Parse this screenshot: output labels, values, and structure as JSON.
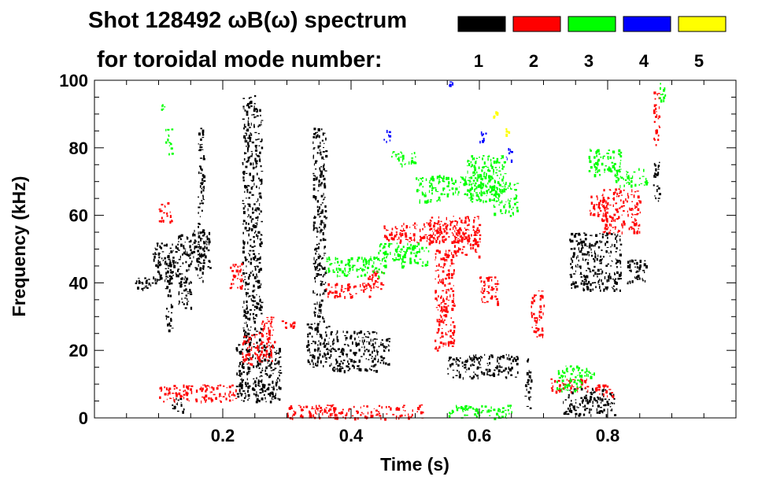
{
  "chart_data": {
    "type": "scatter",
    "title_line1": "Shot 128492 ωB(ω) spectrum",
    "title_line2": "for toroidal mode number:",
    "xlabel": "Time (s)",
    "ylabel": "Frequency (kHz)",
    "xlim": [
      0.0,
      1.0
    ],
    "ylim": [
      0,
      100
    ],
    "x_ticks": [
      0.2,
      0.4,
      0.6,
      0.8
    ],
    "x_tick_labels": [
      "0.2",
      "0.4",
      "0.6",
      "0.8"
    ],
    "y_ticks": [
      0,
      20,
      40,
      60,
      80,
      100
    ],
    "y_tick_labels": [
      "0",
      "20",
      "40",
      "60",
      "80",
      "100"
    ],
    "grid": false,
    "legend_placement": "top-right",
    "series": [
      {
        "name": "1",
        "color": "#000000",
        "blobs": [
          {
            "x": [
              0.06,
              0.09
            ],
            "y": [
              38,
              42
            ]
          },
          {
            "x": [
              0.09,
              0.13
            ],
            "y": [
              40,
              52
            ]
          },
          {
            "x": [
              0.11,
              0.12
            ],
            "y": [
              26,
              46
            ]
          },
          {
            "x": [
              0.13,
              0.15
            ],
            "y": [
              32,
              55
            ]
          },
          {
            "x": [
              0.15,
              0.18
            ],
            "y": [
              44,
              56
            ]
          },
          {
            "x": [
              0.16,
              0.17
            ],
            "y": [
              40,
              86
            ]
          },
          {
            "x": [
              0.12,
              0.14
            ],
            "y": [
              2,
              6
            ]
          },
          {
            "x": [
              0.22,
              0.29
            ],
            "y": [
              5,
              22
            ]
          },
          {
            "x": [
              0.23,
              0.25
            ],
            "y": [
              22,
              96
            ]
          },
          {
            "x": [
              0.25,
              0.26
            ],
            "y": [
              20,
              92
            ]
          },
          {
            "x": [
              0.33,
              0.37
            ],
            "y": [
              15,
              28
            ]
          },
          {
            "x": [
              0.34,
              0.36
            ],
            "y": [
              28,
              86
            ]
          },
          {
            "x": [
              0.37,
              0.44
            ],
            "y": [
              14,
              26
            ]
          },
          {
            "x": [
              0.44,
              0.46
            ],
            "y": [
              16,
              24
            ]
          },
          {
            "x": [
              0.55,
              0.66
            ],
            "y": [
              12,
              19
            ]
          },
          {
            "x": [
              0.67,
              0.68
            ],
            "y": [
              3,
              18
            ]
          },
          {
            "x": [
              0.73,
              0.81
            ],
            "y": [
              1,
              9
            ]
          },
          {
            "x": [
              0.74,
              0.82
            ],
            "y": [
              38,
              55
            ]
          },
          {
            "x": [
              0.83,
              0.86
            ],
            "y": [
              40,
              47
            ]
          },
          {
            "x": [
              0.87,
              0.88
            ],
            "y": [
              64,
              76
            ]
          }
        ]
      },
      {
        "name": "2",
        "color": "#ff0000",
        "blobs": [
          {
            "x": [
              0.1,
              0.22
            ],
            "y": [
              5,
              10
            ]
          },
          {
            "x": [
              0.1,
              0.12
            ],
            "y": [
              58,
              64
            ]
          },
          {
            "x": [
              0.21,
              0.23
            ],
            "y": [
              38,
              46
            ]
          },
          {
            "x": [
              0.23,
              0.28
            ],
            "y": [
              16,
              26
            ]
          },
          {
            "x": [
              0.26,
              0.28
            ],
            "y": [
              22,
              30
            ]
          },
          {
            "x": [
              0.29,
              0.32
            ],
            "y": [
              27,
              29
            ]
          },
          {
            "x": [
              0.3,
              0.51
            ],
            "y": [
              0,
              4
            ]
          },
          {
            "x": [
              0.36,
              0.43
            ],
            "y": [
              36,
              40
            ]
          },
          {
            "x": [
              0.42,
              0.45
            ],
            "y": [
              38,
              44
            ]
          },
          {
            "x": [
              0.45,
              0.55
            ],
            "y": [
              52,
              58
            ]
          },
          {
            "x": [
              0.52,
              0.6
            ],
            "y": [
              52,
              60
            ]
          },
          {
            "x": [
              0.53,
              0.56
            ],
            "y": [
              20,
              50
            ]
          },
          {
            "x": [
              0.56,
              0.6
            ],
            "y": [
              48,
              56
            ]
          },
          {
            "x": [
              0.6,
              0.63
            ],
            "y": [
              34,
              42
            ]
          },
          {
            "x": [
              0.68,
              0.7
            ],
            "y": [
              24,
              38
            ]
          },
          {
            "x": [
              0.71,
              0.77
            ],
            "y": [
              8,
              12
            ]
          },
          {
            "x": [
              0.78,
              0.81
            ],
            "y": [
              6,
              10
            ]
          },
          {
            "x": [
              0.79,
              0.85
            ],
            "y": [
              55,
              68
            ]
          },
          {
            "x": [
              0.77,
              0.8
            ],
            "y": [
              60,
              66
            ]
          },
          {
            "x": [
              0.87,
              0.88
            ],
            "y": [
              80,
              97
            ]
          }
        ]
      },
      {
        "name": "3",
        "color": "#00ff00",
        "blobs": [
          {
            "x": [
              0.1,
              0.11
            ],
            "y": [
              91,
              93
            ]
          },
          {
            "x": [
              0.11,
              0.12
            ],
            "y": [
              78,
              86
            ]
          },
          {
            "x": [
              0.36,
              0.45
            ],
            "y": [
              42,
              48
            ]
          },
          {
            "x": [
              0.44,
              0.52
            ],
            "y": [
              45,
              52
            ]
          },
          {
            "x": [
              0.46,
              0.5
            ],
            "y": [
              75,
              79
            ]
          },
          {
            "x": [
              0.5,
              0.54
            ],
            "y": [
              64,
              72
            ]
          },
          {
            "x": [
              0.54,
              0.62
            ],
            "y": [
              66,
              72
            ]
          },
          {
            "x": [
              0.58,
              0.64
            ],
            "y": [
              64,
              78
            ]
          },
          {
            "x": [
              0.62,
              0.66
            ],
            "y": [
              60,
              70
            ]
          },
          {
            "x": [
              0.55,
              0.65
            ],
            "y": [
              0,
              4
            ]
          },
          {
            "x": [
              0.72,
              0.76
            ],
            "y": [
              8,
              16
            ]
          },
          {
            "x": [
              0.75,
              0.78
            ],
            "y": [
              12,
              15
            ]
          },
          {
            "x": [
              0.77,
              0.82
            ],
            "y": [
              72,
              80
            ]
          },
          {
            "x": [
              0.81,
              0.86
            ],
            "y": [
              69,
              74
            ]
          },
          {
            "x": [
              0.88,
              0.89
            ],
            "y": [
              94,
              100
            ]
          }
        ]
      },
      {
        "name": "4",
        "color": "#0000ff",
        "blobs": [
          {
            "x": [
              0.45,
              0.46
            ],
            "y": [
              82,
              86
            ]
          },
          {
            "x": [
              0.6,
              0.61
            ],
            "y": [
              82,
              86
            ]
          },
          {
            "x": [
              0.64,
              0.65
            ],
            "y": [
              76,
              80
            ]
          },
          {
            "x": [
              0.55,
              0.56
            ],
            "y": [
              98,
              100
            ]
          }
        ]
      },
      {
        "name": "5",
        "color": "#ffff00",
        "blobs": [
          {
            "x": [
              0.62,
              0.63
            ],
            "y": [
              89,
              91
            ]
          },
          {
            "x": [
              0.64,
              0.645
            ],
            "y": [
              84,
              86
            ]
          }
        ]
      }
    ]
  }
}
